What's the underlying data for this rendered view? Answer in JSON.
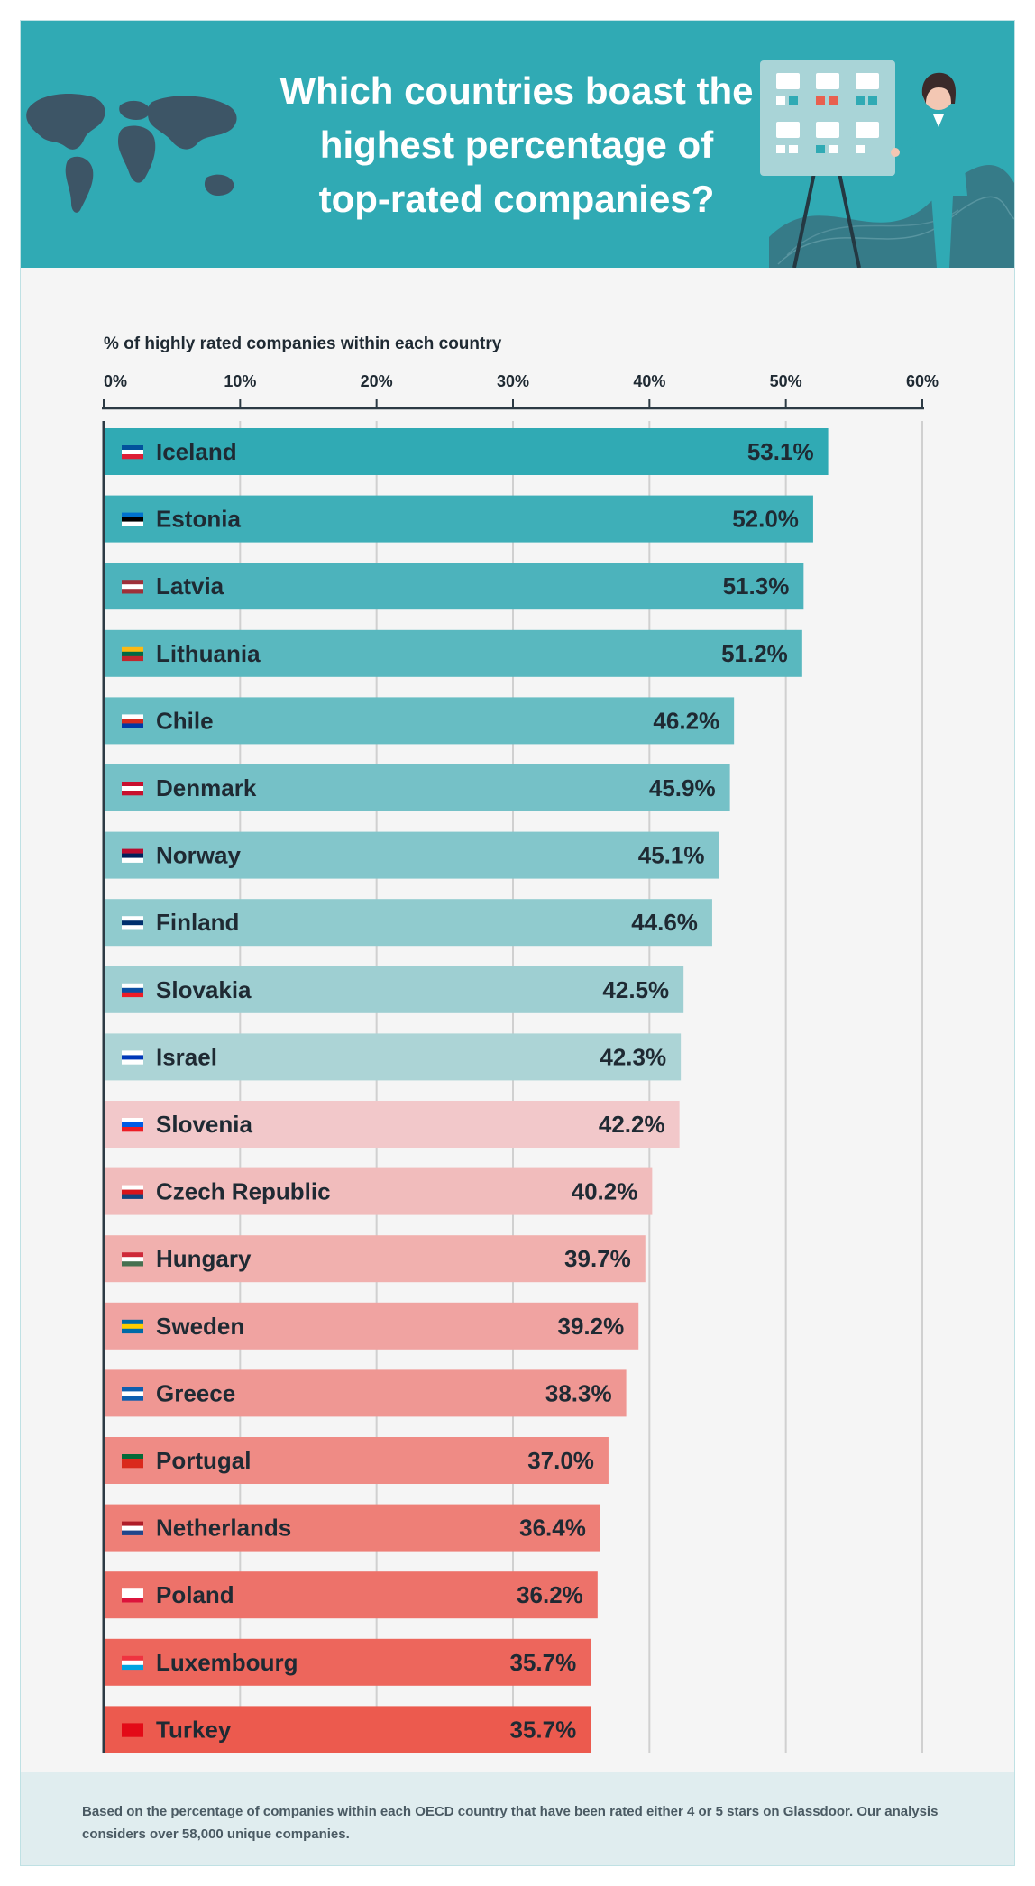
{
  "header": {
    "title_lines": [
      "Which countries boast the",
      "highest percentage of",
      "top-rated companies?"
    ]
  },
  "footer": {
    "note": "Based on the percentage of companies within each OECD country that have been rated either 4 or 5 stars on Glassdoor. Our analysis considers over 58,000 unique companies."
  },
  "icons": [
    "world-map-icon",
    "presenter-board-illustration",
    "flag-icon"
  ],
  "colors": {
    "header_bg": "#30aab4",
    "bar_teal_start": "#30aab4",
    "bar_teal_end": "#acd4d6",
    "bar_pink_start": "#f2c8ca",
    "bar_red_end": "#ec5a4e",
    "text_dark": "#1f2a33"
  },
  "chart_data": {
    "type": "bar",
    "orientation": "horizontal",
    "axis_label": "% of highly rated companies within each country",
    "xlim": [
      0,
      60
    ],
    "ticks": [
      "0%",
      "10%",
      "20%",
      "30%",
      "40%",
      "50%",
      "60%"
    ],
    "tick_values": [
      0,
      10,
      20,
      30,
      40,
      50,
      60
    ],
    "grid": true,
    "categories": [
      "Iceland",
      "Estonia",
      "Latvia",
      "Lithuania",
      "Chile",
      "Denmark",
      "Norway",
      "Finland",
      "Slovakia",
      "Israel",
      "Slovenia",
      "Czech Republic",
      "Hungary",
      "Sweden",
      "Greece",
      "Portugal",
      "Netherlands",
      "Poland",
      "Luxembourg",
      "Turkey"
    ],
    "values": [
      53.1,
      52.0,
      51.3,
      51.2,
      46.2,
      45.9,
      45.1,
      44.6,
      42.5,
      42.3,
      42.2,
      40.2,
      39.7,
      39.2,
      38.3,
      37.0,
      36.4,
      36.2,
      35.7,
      35.7
    ],
    "value_labels": [
      "53.1%",
      "52.0%",
      "51.3%",
      "51.2%",
      "46.2%",
      "45.9%",
      "45.1%",
      "44.6%",
      "42.5%",
      "42.3%",
      "42.2%",
      "40.2%",
      "39.7%",
      "39.2%",
      "38.3%",
      "37.0%",
      "36.4%",
      "36.2%",
      "35.7%",
      "35.7%"
    ],
    "flag_colors": [
      [
        "#02529c",
        "#ffffff",
        "#dc1e35"
      ],
      [
        "#0072ce",
        "#000000",
        "#ffffff"
      ],
      [
        "#9e3039",
        "#ffffff",
        "#9e3039"
      ],
      [
        "#fdb913",
        "#006a44",
        "#c1272d"
      ],
      [
        "#ffffff",
        "#d52b1e",
        "#0039a6"
      ],
      [
        "#c8102e",
        "#ffffff",
        "#c8102e"
      ],
      [
        "#ba0c2f",
        "#00205b",
        "#ffffff"
      ],
      [
        "#ffffff",
        "#002f6c",
        "#ffffff"
      ],
      [
        "#ffffff",
        "#0b4ea2",
        "#ee1c25"
      ],
      [
        "#ffffff",
        "#0038b8",
        "#ffffff"
      ],
      [
        "#ffffff",
        "#005ce5",
        "#ed1c24"
      ],
      [
        "#ffffff",
        "#d7141a",
        "#11457e"
      ],
      [
        "#ce2939",
        "#ffffff",
        "#477050"
      ],
      [
        "#006aa7",
        "#fecc00",
        "#006aa7"
      ],
      [
        "#0d5eaf",
        "#ffffff",
        "#0d5eaf"
      ],
      [
        "#046a38",
        "#da291c",
        "#da291c"
      ],
      [
        "#ae1c28",
        "#ffffff",
        "#21468b"
      ],
      [
        "#ffffff",
        "#ffffff",
        "#dc143c"
      ],
      [
        "#ef3340",
        "#ffffff",
        "#00a3e0"
      ],
      [
        "#e30a17",
        "#e30a17",
        "#e30a17"
      ]
    ]
  }
}
